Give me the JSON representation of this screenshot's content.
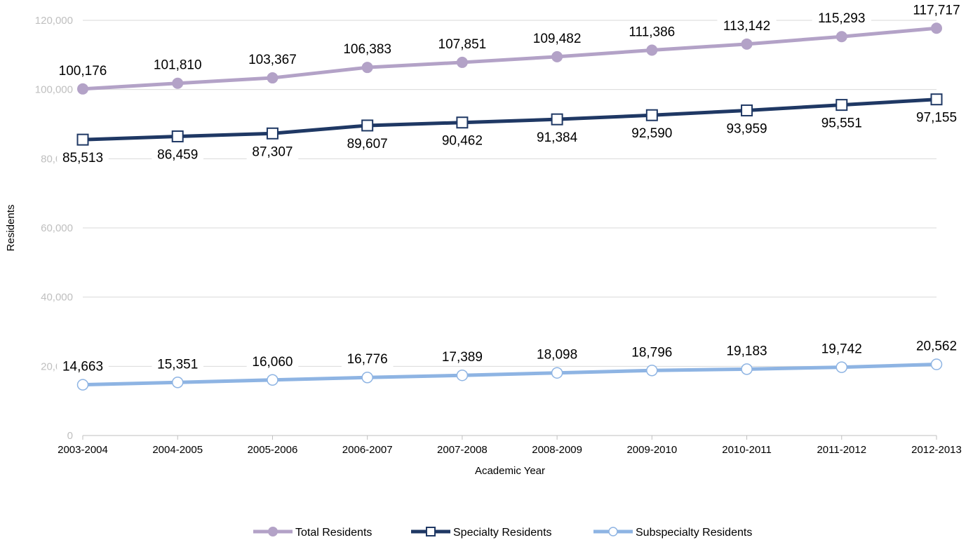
{
  "chart_data": {
    "type": "line",
    "title": "",
    "xlabel": "Academic Year",
    "ylabel": "Residents",
    "ylim": [
      0,
      120000
    ],
    "yticks": [
      0,
      20000,
      40000,
      60000,
      80000,
      100000,
      120000
    ],
    "ytick_labels": [
      "0",
      "20,000",
      "40,000",
      "60,000",
      "80,000",
      "100,000",
      "120,000"
    ],
    "categories": [
      "2003-2004",
      "2004-2005",
      "2005-2006",
      "2006-2007",
      "2007-2008",
      "2008-2009",
      "2009-2010",
      "2010-2011",
      "2011-2012",
      "2012-2013"
    ],
    "grid": true,
    "legend": "bottom",
    "series": [
      {
        "name": "Total Residents",
        "color": "#b3a2c7",
        "marker": "filled-circle",
        "label_position": "above",
        "values": [
          100176,
          101810,
          103367,
          106383,
          107851,
          109482,
          111386,
          113142,
          115293,
          117717
        ],
        "labels": [
          "100,176",
          "101,810",
          "103,367",
          "106,383",
          "107,851",
          "109,482",
          "111,386",
          "113,142",
          "115,293",
          "117,717"
        ]
      },
      {
        "name": "Specialty Residents",
        "color": "#1f3864",
        "marker": "hollow-square",
        "label_position": "below",
        "values": [
          85513,
          86459,
          87307,
          89607,
          90462,
          91384,
          92590,
          93959,
          95551,
          97155
        ],
        "labels": [
          "85,513",
          "86,459",
          "87,307",
          "89,607",
          "90,462",
          "91,384",
          "92,590",
          "93,959",
          "95,551",
          "97,155"
        ]
      },
      {
        "name": "Subspecialty Residents",
        "color": "#8eb4e3",
        "marker": "hollow-circle",
        "label_position": "above",
        "values": [
          14663,
          15351,
          16060,
          16776,
          17389,
          18098,
          18796,
          19183,
          19742,
          20562
        ],
        "labels": [
          "14,663",
          "15,351",
          "16,060",
          "16,776",
          "17,389",
          "18,098",
          "18,796",
          "19,183",
          "19,742",
          "20,562"
        ]
      }
    ]
  }
}
